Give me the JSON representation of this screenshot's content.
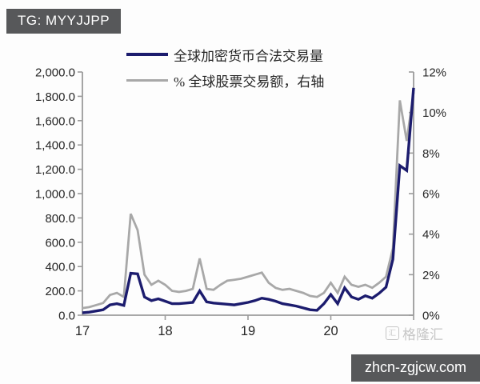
{
  "badge": {
    "text": "TG: MYYJJPP"
  },
  "legend": [
    {
      "label": "全球加密货币合法交易量",
      "color": "#1c1c6e"
    },
    {
      "label": "% 全球股票交易额，右轴",
      "color": "#a8a8a8"
    }
  ],
  "watermark": {
    "text": "格隆汇",
    "logo_glyph": "汇"
  },
  "footer": {
    "text": "zhcn-zgjcw.com"
  },
  "chart_data": {
    "type": "line",
    "title": "",
    "grid": false,
    "legend_position": "top",
    "x": [
      "2017-01",
      "2017-02",
      "2017-03",
      "2017-04",
      "2017-05",
      "2017-06",
      "2017-07",
      "2017-08",
      "2017-09",
      "2017-10",
      "2017-11",
      "2017-12",
      "2018-01",
      "2018-02",
      "2018-03",
      "2018-04",
      "2018-05",
      "2018-06",
      "2018-07",
      "2018-08",
      "2018-09",
      "2018-10",
      "2018-11",
      "2018-12",
      "2019-01",
      "2019-02",
      "2019-03",
      "2019-04",
      "2019-05",
      "2019-06",
      "2019-07",
      "2019-08",
      "2019-09",
      "2019-10",
      "2019-11",
      "2019-12",
      "2020-01",
      "2020-02",
      "2020-03",
      "2020-04",
      "2020-05",
      "2020-06",
      "2020-07",
      "2020-08",
      "2020-09",
      "2020-10",
      "2020-11",
      "2020-12",
      "2021-01"
    ],
    "x_axis": {
      "tick_labels": [
        "17",
        "18",
        "19",
        "20"
      ]
    },
    "left_axis": {
      "min": 0,
      "max": 2000,
      "tick_labels": [
        "2,000.0",
        "1,800.0",
        "1,600.0",
        "1,400.0",
        "1,200.0",
        "1,000.0",
        "800.0",
        "600.0",
        "400.0",
        "200.0",
        "0.0"
      ]
    },
    "right_axis": {
      "min": 0,
      "max": 12,
      "tick_labels": [
        "12%",
        "10%",
        "8%",
        "6%",
        "4%",
        "2%",
        "0%"
      ]
    },
    "series": [
      {
        "name": "全球加密货币合法交易量",
        "axis": "left",
        "color": "#1c1c6e",
        "values": [
          20,
          25,
          35,
          45,
          85,
          95,
          80,
          345,
          340,
          150,
          120,
          135,
          115,
          95,
          95,
          100,
          105,
          200,
          110,
          100,
          95,
          90,
          85,
          95,
          105,
          120,
          140,
          130,
          115,
          95,
          85,
          75,
          60,
          45,
          40,
          95,
          170,
          95,
          225,
          150,
          130,
          160,
          140,
          180,
          230,
          460,
          1230,
          1190,
          1870
        ]
      },
      {
        "name": "% 全球股票交易额，右轴",
        "axis": "right",
        "color": "#a8a8a8",
        "values": [
          0.35,
          0.4,
          0.5,
          0.6,
          1.0,
          1.1,
          0.9,
          5.0,
          4.2,
          2.0,
          1.5,
          1.7,
          1.5,
          1.2,
          1.15,
          1.2,
          1.3,
          2.8,
          1.3,
          1.25,
          1.5,
          1.7,
          1.75,
          1.8,
          1.9,
          2.0,
          2.1,
          1.6,
          1.35,
          1.25,
          1.3,
          1.2,
          1.1,
          0.95,
          0.9,
          1.1,
          1.6,
          1.1,
          1.9,
          1.5,
          1.4,
          1.5,
          1.35,
          1.6,
          1.9,
          3.3,
          10.6,
          8.6,
          11.0
        ]
      }
    ]
  }
}
